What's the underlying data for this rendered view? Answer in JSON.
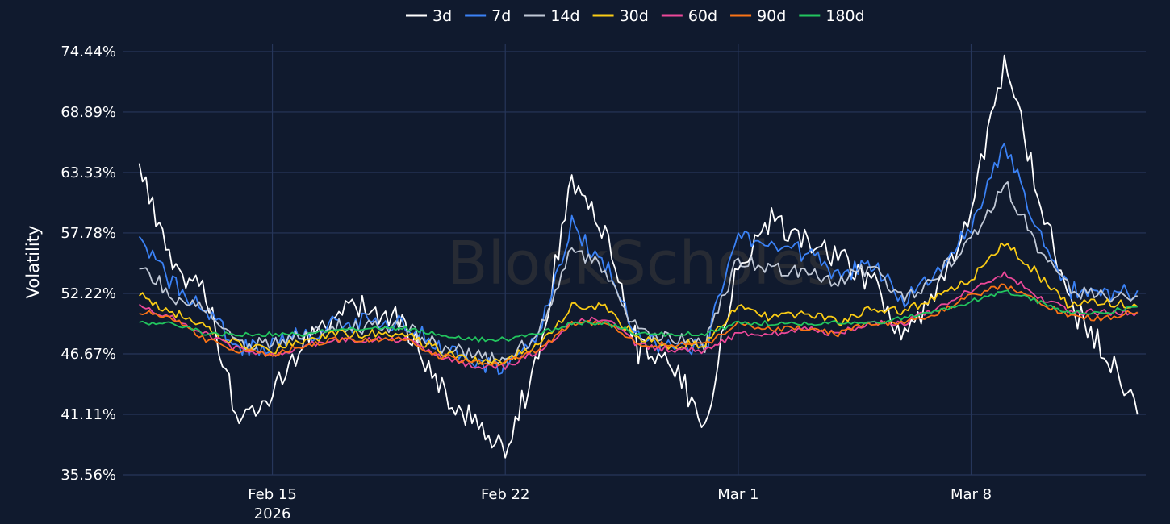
{
  "chart_data": {
    "type": "line",
    "ylabel": "Volatility",
    "ylim": [
      35.56,
      74.44
    ],
    "y_ticks": [
      "35.56%",
      "41.11%",
      "46.67%",
      "52.22%",
      "57.78%",
      "63.33%",
      "68.89%",
      "74.44%"
    ],
    "x_ticks": [
      {
        "label": "Feb 15",
        "sublabel": "2026",
        "date": "2026-02-15"
      },
      {
        "label": "Feb 22",
        "sublabel": "",
        "date": "2026-02-22"
      },
      {
        "label": "Mar 1",
        "sublabel": "",
        "date": "2026-03-01"
      },
      {
        "label": "Mar 8",
        "sublabel": "",
        "date": "2026-03-08"
      }
    ],
    "grid": true,
    "legend_position": "top-center",
    "watermark": "BlockScholes",
    "background": "#101a2e",
    "x": [
      "2026-02-11",
      "2026-02-12",
      "2026-02-13",
      "2026-02-14",
      "2026-02-15",
      "2026-02-16",
      "2026-02-17",
      "2026-02-18",
      "2026-02-19",
      "2026-02-20",
      "2026-02-21",
      "2026-02-22",
      "2026-02-23",
      "2026-02-24",
      "2026-02-25",
      "2026-02-26",
      "2026-02-27",
      "2026-02-28",
      "2026-03-01",
      "2026-03-02",
      "2026-03-03",
      "2026-03-04",
      "2026-03-05",
      "2026-03-06",
      "2026-03-07",
      "2026-03-08",
      "2026-03-09",
      "2026-03-10",
      "2026-03-11",
      "2026-03-12",
      "2026-03-13"
    ],
    "series": [
      {
        "name": "3d",
        "color": "#ffffff",
        "values": [
          64.5,
          54.0,
          52.5,
          40.0,
          43.5,
          48.0,
          50.5,
          51.0,
          49.5,
          43.5,
          40.5,
          38.0,
          46.0,
          63.0,
          58.0,
          47.0,
          45.5,
          40.5,
          55.0,
          59.0,
          57.0,
          55.5,
          53.5,
          48.0,
          52.0,
          60.0,
          73.5,
          62.0,
          51.0,
          47.0,
          41.1
        ]
      },
      {
        "name": "7d",
        "color": "#3b82f6",
        "values": [
          57.0,
          53.0,
          51.0,
          47.0,
          47.5,
          48.5,
          49.5,
          49.5,
          49.5,
          47.5,
          46.0,
          45.5,
          48.5,
          58.5,
          55.0,
          48.0,
          47.5,
          47.0,
          58.0,
          56.5,
          56.0,
          54.0,
          55.0,
          51.5,
          54.5,
          58.5,
          66.0,
          58.0,
          52.5,
          52.0,
          52.5
        ]
      },
      {
        "name": "14d",
        "color": "#c0c8d6",
        "values": [
          55.0,
          52.0,
          50.5,
          47.5,
          47.5,
          48.5,
          49.5,
          49.0,
          49.0,
          47.5,
          46.5,
          46.0,
          48.5,
          56.5,
          54.5,
          48.5,
          48.0,
          47.5,
          55.5,
          54.5,
          54.0,
          53.5,
          54.5,
          51.5,
          54.0,
          57.0,
          62.5,
          56.5,
          52.5,
          52.0,
          52.0
        ]
      },
      {
        "name": "30d",
        "color": "#facc15",
        "values": [
          52.0,
          50.5,
          49.0,
          47.5,
          47.0,
          48.0,
          48.5,
          48.5,
          48.5,
          47.0,
          46.0,
          46.0,
          47.5,
          51.0,
          51.0,
          48.0,
          47.5,
          47.5,
          51.0,
          50.0,
          50.5,
          49.5,
          51.0,
          50.5,
          52.0,
          53.5,
          57.0,
          54.0,
          51.0,
          51.5,
          51.0
        ]
      },
      {
        "name": "60d",
        "color": "#ec4899",
        "values": [
          51.0,
          50.0,
          48.5,
          47.0,
          46.5,
          47.5,
          48.0,
          48.0,
          48.0,
          46.5,
          45.5,
          45.5,
          47.0,
          49.5,
          50.0,
          47.5,
          47.0,
          47.0,
          48.5,
          48.5,
          49.0,
          48.5,
          49.5,
          49.5,
          51.0,
          52.5,
          54.0,
          52.0,
          50.5,
          50.5,
          50.5
        ]
      },
      {
        "name": "90d",
        "color": "#f97316",
        "values": [
          50.5,
          50.0,
          48.0,
          47.0,
          46.5,
          47.5,
          48.0,
          48.0,
          48.0,
          46.5,
          46.0,
          45.8,
          47.0,
          49.5,
          49.5,
          47.5,
          47.5,
          47.5,
          49.5,
          49.0,
          49.0,
          48.5,
          49.5,
          49.5,
          50.5,
          52.0,
          53.0,
          51.5,
          50.0,
          50.0,
          50.5
        ]
      },
      {
        "name": "180d",
        "color": "#22c55e",
        "values": [
          49.5,
          49.5,
          48.5,
          48.5,
          48.5,
          48.5,
          49.0,
          49.0,
          49.0,
          48.5,
          48.0,
          48.0,
          48.5,
          49.5,
          49.5,
          48.5,
          48.5,
          48.5,
          49.5,
          49.5,
          49.5,
          49.5,
          49.5,
          50.0,
          50.5,
          51.5,
          52.5,
          51.5,
          50.5,
          50.5,
          51.0
        ]
      }
    ]
  }
}
